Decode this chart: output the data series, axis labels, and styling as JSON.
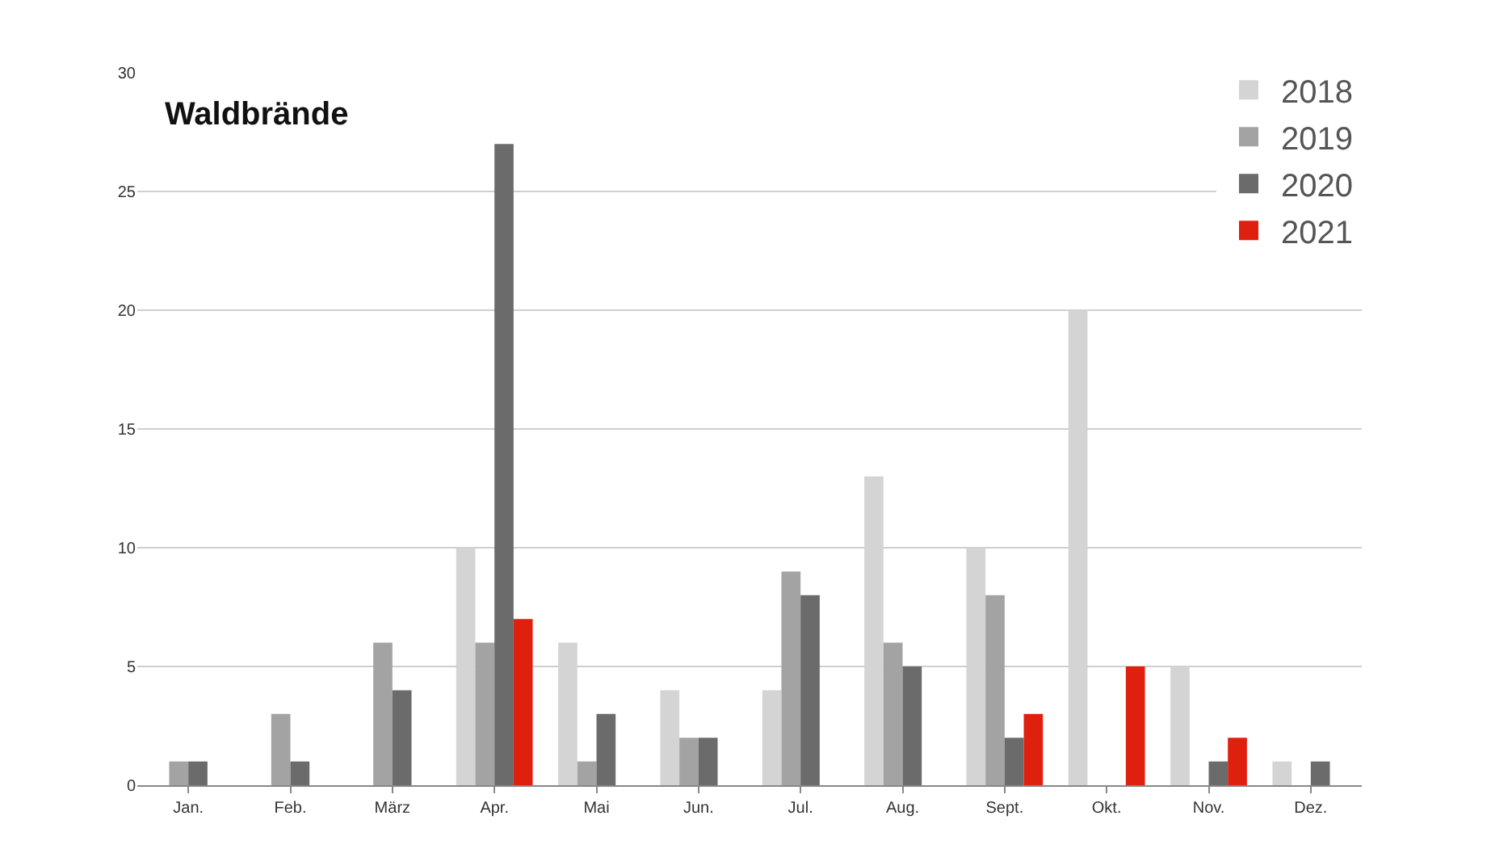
{
  "chart_data": {
    "type": "bar",
    "title": "Waldbrände",
    "categories": [
      "Jan.",
      "Feb.",
      "März",
      "Apr.",
      "Mai",
      "Jun.",
      "Jul.",
      "Aug.",
      "Sept.",
      "Okt.",
      "Nov.",
      "Dez."
    ],
    "series": [
      {
        "name": "2018",
        "color": "#d4d4d4",
        "values": [
          0,
          0,
          0,
          10,
          6,
          4,
          4,
          13,
          10,
          20,
          5,
          1
        ]
      },
      {
        "name": "2019",
        "color": "#a3a3a3",
        "values": [
          1,
          3,
          6,
          6,
          1,
          2,
          9,
          6,
          8,
          0,
          0,
          0
        ]
      },
      {
        "name": "2020",
        "color": "#6b6b6b",
        "values": [
          1,
          1,
          4,
          27,
          3,
          2,
          8,
          5,
          2,
          0,
          1,
          1
        ]
      },
      {
        "name": "2021",
        "color": "#e0200f",
        "values": [
          0,
          0,
          0,
          7,
          0,
          0,
          0,
          0,
          3,
          5,
          2,
          null
        ]
      }
    ],
    "ylim": [
      0,
      30
    ],
    "yticks": [
      0,
      5,
      10,
      15,
      20,
      25,
      30
    ],
    "grid": "y",
    "legend": "top right"
  }
}
